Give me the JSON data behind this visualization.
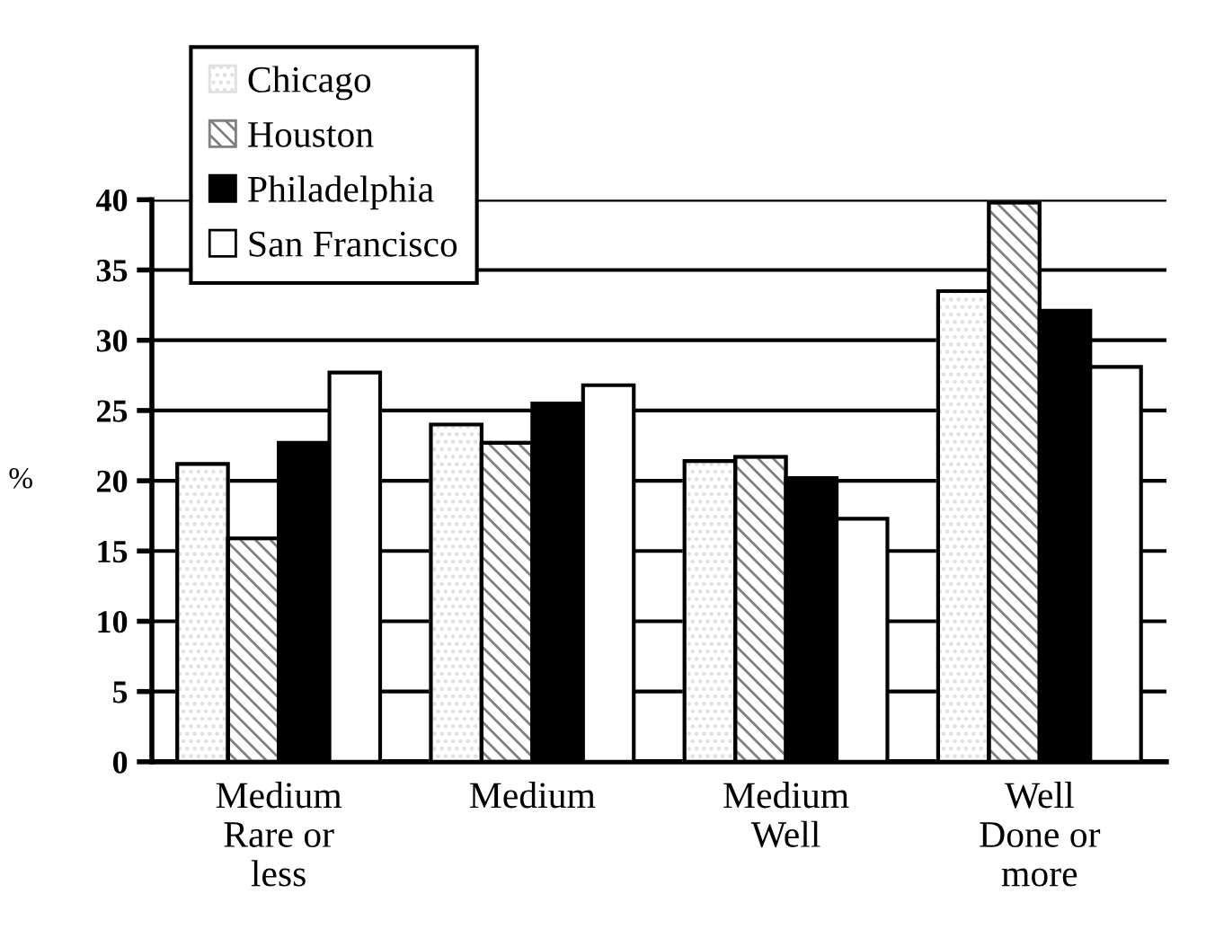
{
  "chart_data": {
    "type": "bar",
    "ylabel": "%",
    "categories": [
      "Medium\nRare or\nless",
      "Medium",
      "Medium\nWell",
      "Well\nDone or\nmore"
    ],
    "series": [
      {
        "name": "Chicago",
        "color": "#e0e0e0",
        "values": [
          21.2,
          24.0,
          21.4,
          33.5
        ]
      },
      {
        "name": "Houston",
        "color": "#808080",
        "values": [
          15.9,
          22.7,
          21.7,
          39.8
        ]
      },
      {
        "name": "Philadelphia",
        "color": "#000000",
        "values": [
          22.7,
          25.5,
          20.2,
          32.1
        ]
      },
      {
        "name": "San Francisco",
        "color": "#ffffff",
        "values": [
          27.7,
          26.8,
          17.3,
          28.1
        ]
      }
    ],
    "ylim": [
      0,
      40
    ],
    "yticks": [
      0,
      5,
      10,
      15,
      20,
      25,
      30,
      35,
      40
    ],
    "grid": "y",
    "legend": "top left"
  }
}
